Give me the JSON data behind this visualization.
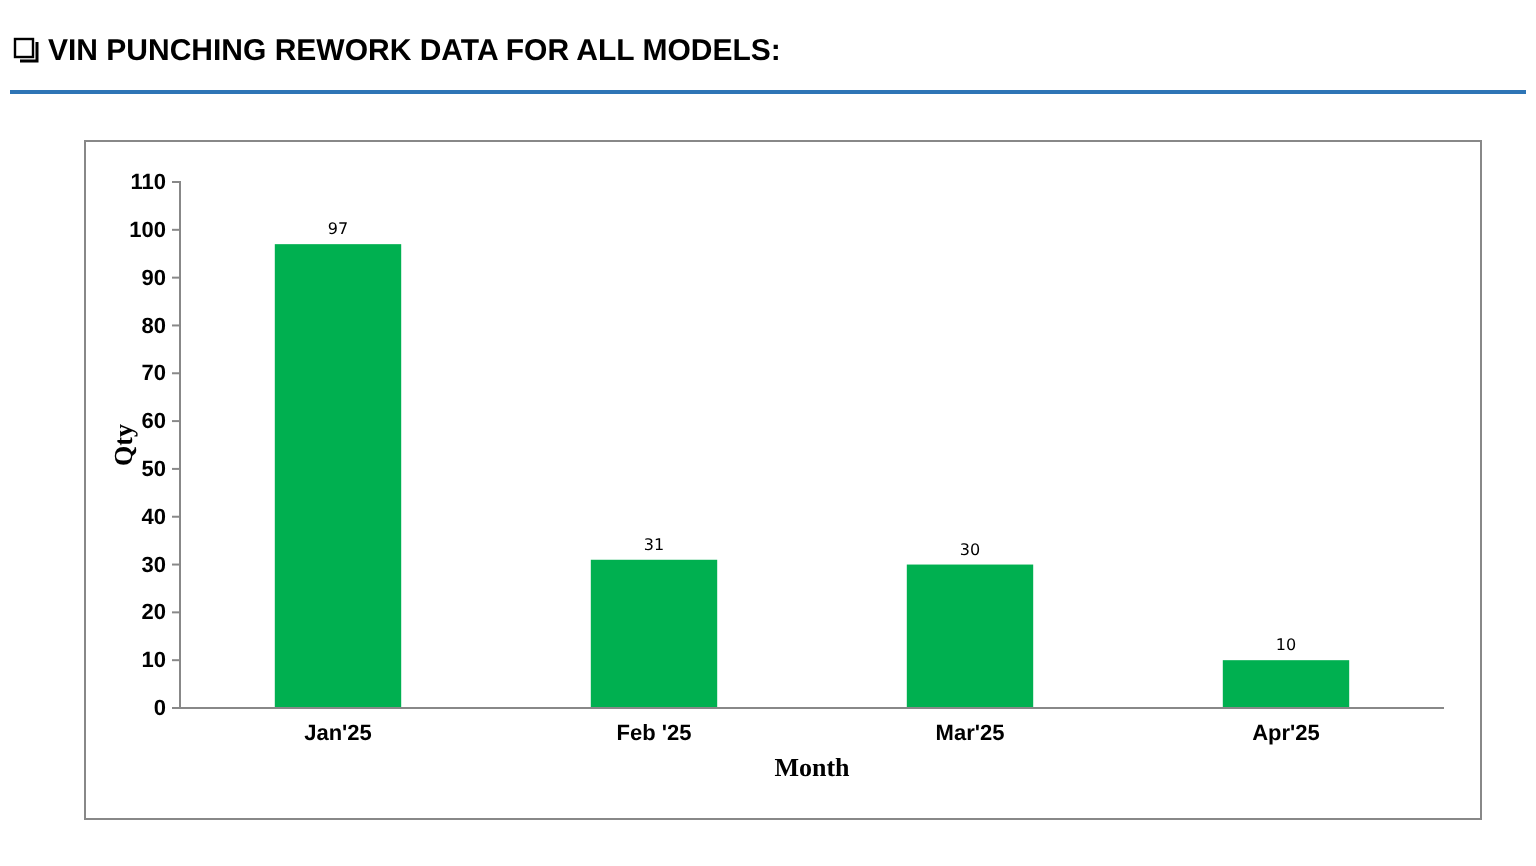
{
  "chart_data": {
    "type": "bar",
    "title": "VIN PUNCHING REWORK DATA FOR ALL MODELS:",
    "xlabel": "Month",
    "ylabel": "Qty",
    "categories": [
      "Jan'25",
      "Feb '25",
      "Mar'25",
      "Apr'25"
    ],
    "values": [
      97,
      31,
      30,
      10
    ],
    "color": "#00b050",
    "ylim": [
      0,
      110
    ],
    "yticks": [
      0,
      10,
      20,
      30,
      40,
      50,
      60,
      70,
      80,
      90,
      100,
      110
    ],
    "data_labels": true
  }
}
